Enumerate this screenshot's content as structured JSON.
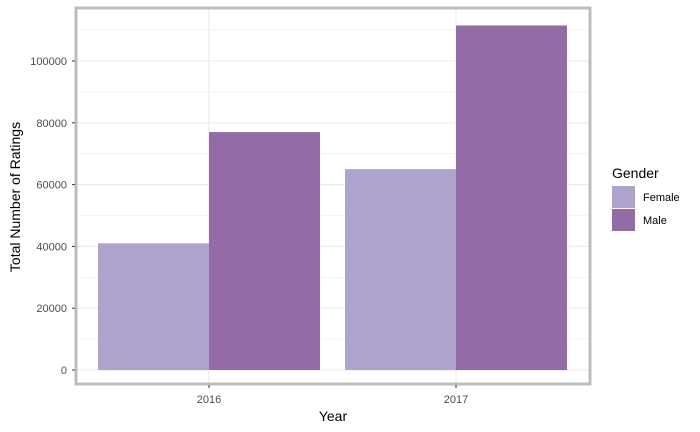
{
  "chart_data": {
    "type": "bar",
    "categories": [
      "2016",
      "2017"
    ],
    "series": [
      {
        "name": "Female",
        "values": [
          41000,
          65000
        ],
        "color": "#ada3cc"
      },
      {
        "name": "Male",
        "values": [
          77000,
          111500
        ],
        "color": "#926ba7"
      }
    ],
    "xlabel": "Year",
    "ylabel": "Total Number of Ratings",
    "ylim": [
      0,
      115000
    ],
    "yticks": [
      0,
      20000,
      40000,
      60000,
      80000,
      100000
    ],
    "ytick_labels": [
      "0",
      "20000",
      "40000",
      "60000",
      "80000",
      "100000"
    ],
    "grid": true,
    "legend": {
      "title": "Gender",
      "placement": "right"
    },
    "colors": {
      "grid": "#ebebeb",
      "border": "#bdbdbd"
    }
  }
}
